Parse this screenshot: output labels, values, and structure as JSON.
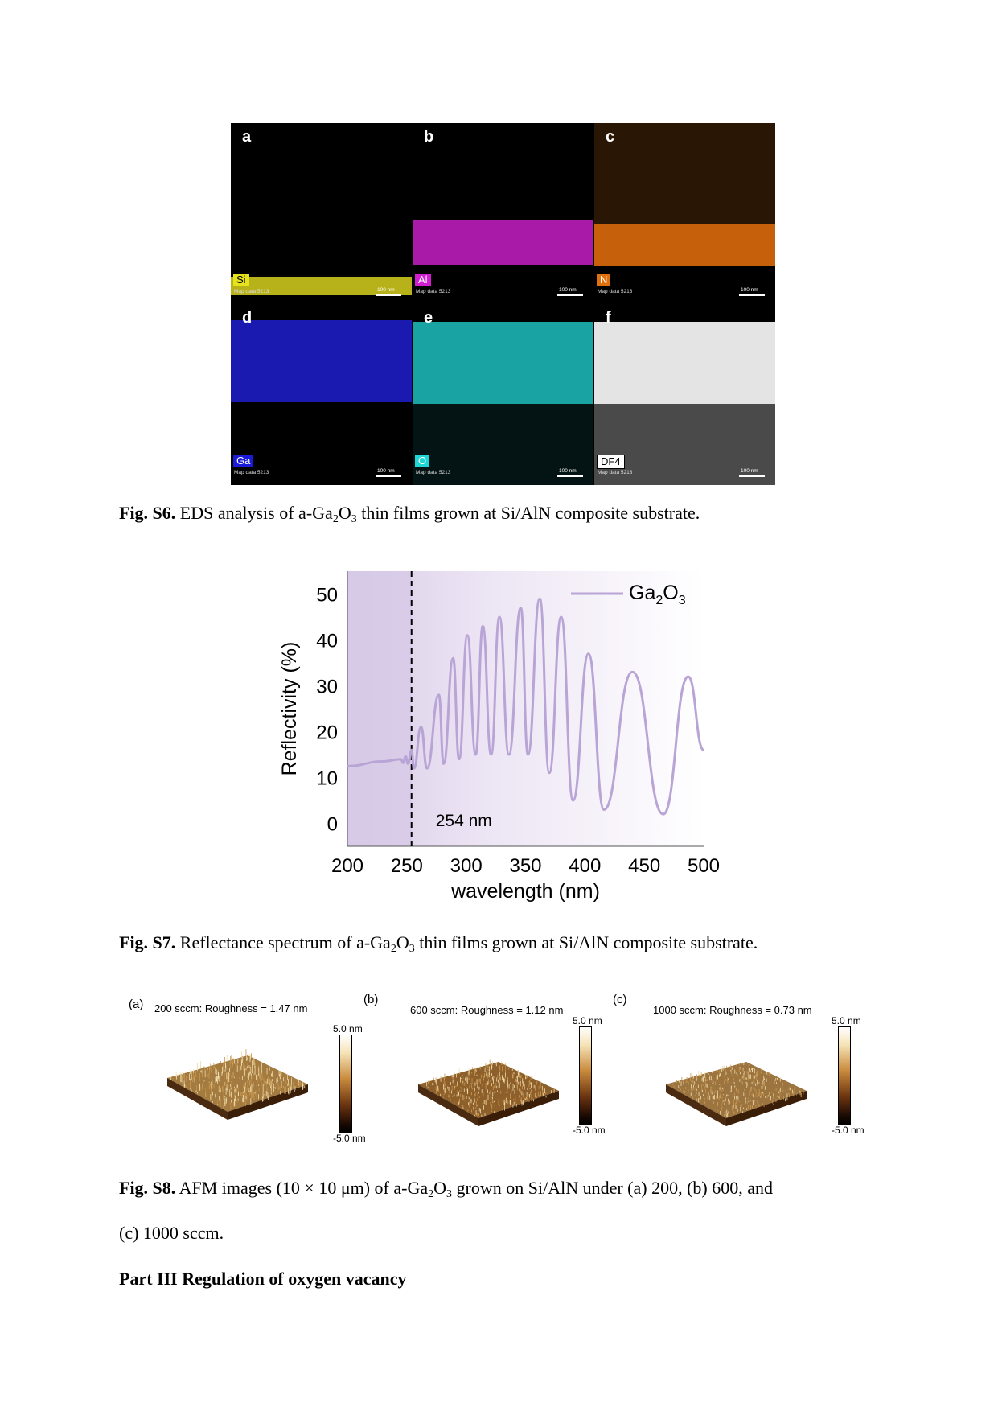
{
  "fig_s6": {
    "panels": [
      {
        "letter": "a",
        "element": "Si",
        "color": "#e6e21c",
        "map": "Map data 5213",
        "scale": "100 nm"
      },
      {
        "letter": "b",
        "element": "Al",
        "color": "#d11ed1",
        "map": "Map data 5213",
        "scale": "100 nm"
      },
      {
        "letter": "c",
        "element": "N",
        "color": "#e0700e",
        "map": "Map data 5213",
        "scale": "100 nm"
      },
      {
        "letter": "d",
        "element": "Ga",
        "color": "#1a1ad9",
        "map": "Map data 5213",
        "scale": "100 nm"
      },
      {
        "letter": "e",
        "element": "O",
        "color": "#1fd6d6",
        "map": "Map data 5213",
        "scale": "100 nm"
      },
      {
        "letter": "f",
        "element": "DF4",
        "color": "#ffffff",
        "map": "Map data 5213",
        "scale": "100 nm"
      }
    ],
    "caption_bold": "Fig. S6.",
    "caption_pre": " EDS analysis of a-Ga",
    "caption_sub1": "2",
    "caption_mid": "O",
    "caption_sub2": "3",
    "caption_post": " thin films grown at Si/AlN composite substrate."
  },
  "fig_s7": {
    "caption_bold": "Fig. S7.",
    "caption_pre": " Reflectance spectrum of a-Ga",
    "caption_sub1": "2",
    "caption_mid": "O",
    "caption_sub2": "3",
    "caption_post": " thin films grown at Si/AlN composite substrate."
  },
  "chart_data": {
    "type": "line",
    "xlabel": "wavelength (nm)",
    "ylabel": "Reflectivity (%)",
    "xlim": [
      200,
      500
    ],
    "ylim": [
      -5,
      55
    ],
    "xticks": [
      200,
      250,
      300,
      350,
      400,
      450,
      500
    ],
    "yticks": [
      0,
      10,
      20,
      30,
      40,
      50
    ],
    "legend": "top-right",
    "grid": false,
    "series": [
      {
        "name": "Ga2O3",
        "color": "#b9a4d6",
        "peaks": [
          [
            254,
            16
          ],
          [
            262,
            21
          ],
          [
            277,
            28
          ],
          [
            289,
            36
          ],
          [
            301,
            41
          ],
          [
            314,
            43
          ],
          [
            328,
            45
          ],
          [
            346,
            47
          ],
          [
            362,
            49
          ],
          [
            380,
            45
          ],
          [
            403,
            37
          ],
          [
            440,
            33
          ],
          [
            487,
            32
          ]
        ],
        "valleys": [
          [
            256,
            12
          ],
          [
            267,
            12
          ],
          [
            281,
            13
          ],
          [
            294,
            14
          ],
          [
            308,
            15
          ],
          [
            321,
            15
          ],
          [
            336,
            15
          ],
          [
            352,
            15
          ],
          [
            370,
            11
          ],
          [
            390,
            5
          ],
          [
            416,
            3
          ],
          [
            466,
            2
          ]
        ],
        "x": [
          200,
          230,
          245,
          250,
          500
        ],
        "y": [
          12.5,
          13.5,
          14,
          14.5,
          16
        ]
      }
    ],
    "annotations": [
      {
        "x": 254,
        "text": "254 nm",
        "style": "dashed vertical line"
      }
    ]
  },
  "chart_text": {
    "legend_main": "Ga",
    "legend_sub1": "2",
    "legend_o": "O",
    "legend_sub2": "3",
    "annotation": "254 nm"
  },
  "fig_s8": {
    "panels": [
      {
        "tag": "(a)",
        "title": "200 sccm:  Roughness = 1.47 nm",
        "cb_top": "5.0 nm",
        "cb_bot": "-5.0 nm"
      },
      {
        "tag": "(b)",
        "title": "600 sccm:  Roughness = 1.12 nm",
        "cb_top": "5.0 nm",
        "cb_bot": "-5.0 nm"
      },
      {
        "tag": "(c)",
        "title": "1000 sccm:  Roughness = 0.73 nm",
        "cb_top": "5.0 nm",
        "cb_bot": "-5.0 nm"
      }
    ],
    "caption_bold": "Fig. S8.",
    "caption_line1_pre": " AFM images (10 × 10 μm) of a-Ga",
    "caption_sub1": "2",
    "caption_mid": "O",
    "caption_sub2": "3",
    "caption_line1_post": " grown on Si/AlN under (a) 200, (b) 600, and",
    "caption_line2": "(c) 1000 sccm."
  },
  "section_heading": "Part III Regulation of oxygen vacancy"
}
